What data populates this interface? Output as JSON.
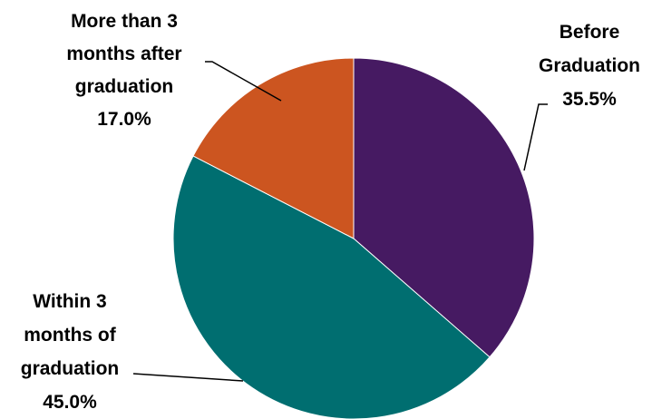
{
  "chart_data": {
    "type": "pie",
    "title": "",
    "slices": [
      {
        "label_lines": [
          "Before",
          "Graduation"
        ],
        "value_label": "35.5%",
        "value": 35.5,
        "color": "#461A62"
      },
      {
        "label_lines": [
          "Within 3",
          "months of",
          "graduation"
        ],
        "value_label": "45.0%",
        "value": 45.0,
        "color": "#006E70"
      },
      {
        "label_lines": [
          "More than 3",
          "months after",
          "graduation"
        ],
        "value_label": "17.0%",
        "value": 17.0,
        "color": "#CC5520"
      }
    ],
    "legend": "none",
    "data_labels": "outside-with-leader-lines"
  }
}
